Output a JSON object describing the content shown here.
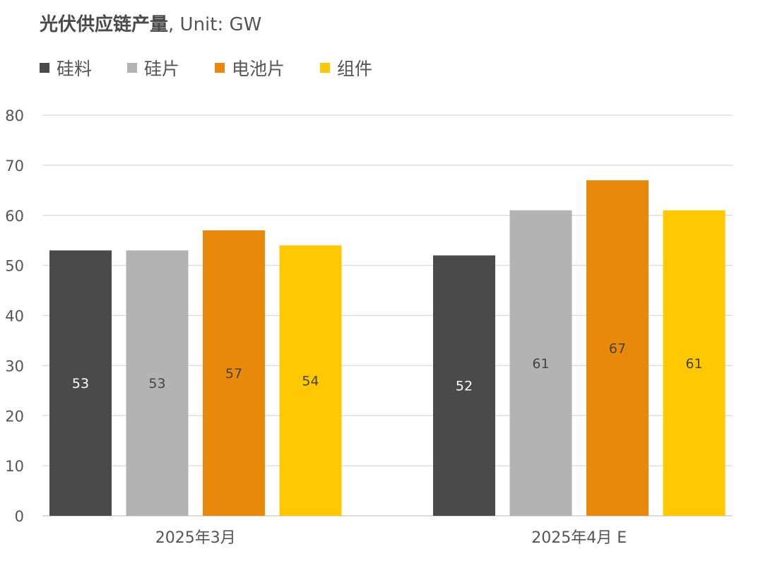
{
  "header": {
    "title_bold": "光伏供应链产量",
    "title_rest": ", Unit: GW"
  },
  "colors": {
    "silicon_material": "#4a4a4a",
    "wafer": "#b3b3b3",
    "cell": "#e8890c",
    "module": "#ffc800",
    "grid": "#d9d9d9",
    "text": "#555555"
  },
  "chart_data": {
    "type": "bar",
    "title": "光伏供应链产量, Unit: GW",
    "xlabel": "",
    "ylabel": "",
    "categories": [
      "2025年3月",
      "2025年4月 E"
    ],
    "series": [
      {
        "name": "硅料",
        "values": [
          53,
          52
        ],
        "color": "#4a4a4a",
        "label_color": "#ffffff"
      },
      {
        "name": "硅片",
        "values": [
          53,
          61
        ],
        "color": "#b3b3b3",
        "label_color": "#444444"
      },
      {
        "name": "电池片",
        "values": [
          57,
          67
        ],
        "color": "#e8890c",
        "label_color": "#444444"
      },
      {
        "name": "组件",
        "values": [
          54,
          61
        ],
        "color": "#ffc800",
        "label_color": "#444444"
      }
    ],
    "ylim": [
      0,
      80
    ],
    "yticks": [
      0,
      10,
      20,
      30,
      40,
      50,
      60,
      70,
      80
    ],
    "grid": true,
    "legend_position": "top-left",
    "data_labels": true
  }
}
